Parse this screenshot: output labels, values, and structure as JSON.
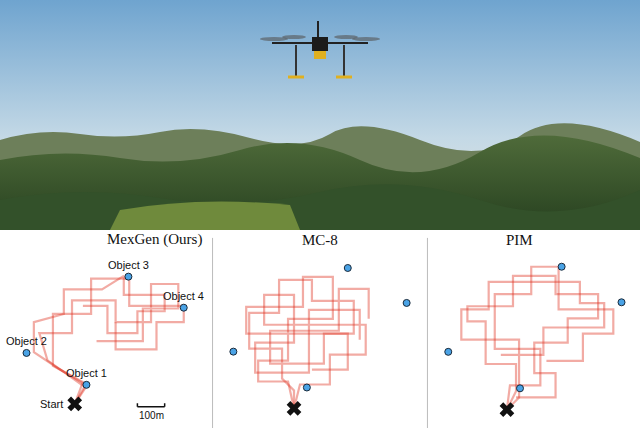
{
  "chart_data": [
    {
      "type": "trajectory",
      "title": "MexGen (Ours)",
      "color": "#e0301e",
      "tick_labels": false,
      "start": {
        "x": 0,
        "y": 0,
        "label": "Start"
      },
      "scale_bar": {
        "length": 100,
        "label": "100m"
      },
      "objects": [
        {
          "x": 43,
          "y": 70,
          "label": "Object 1"
        },
        {
          "x": -177,
          "y": 187,
          "label": "Object 2"
        },
        {
          "x": 197,
          "y": 467,
          "label": "Object 3"
        },
        {
          "x": 400,
          "y": 353,
          "label": "Object 4"
        }
      ],
      "series": [
        {
          "values": [
            [
              0,
              0
            ],
            [
              40,
              70
            ],
            [
              -60,
              130
            ],
            [
              -150,
              190
            ],
            [
              -150,
              300
            ],
            [
              -40,
              330
            ],
            [
              -40,
              420
            ],
            [
              100,
              420
            ],
            [
              180,
              470
            ],
            [
              180,
              400
            ],
            [
              330,
              400
            ],
            [
              330,
              340
            ],
            [
              230,
              340
            ],
            [
              230,
              260
            ],
            [
              120,
              260
            ],
            [
              120,
              360
            ],
            [
              30,
              360
            ]
          ]
        },
        {
          "values": [
            [
              0,
              0
            ],
            [
              40,
              60
            ],
            [
              -100,
              160
            ],
            [
              -130,
              260
            ],
            [
              -10,
              260
            ],
            [
              -10,
              380
            ],
            [
              150,
              380
            ],
            [
              150,
              300
            ],
            [
              280,
              300
            ],
            [
              280,
              440
            ],
            [
              380,
              440
            ],
            [
              380,
              350
            ],
            [
              250,
              350
            ],
            [
              250,
              230
            ],
            [
              80,
              230
            ]
          ]
        },
        {
          "values": [
            [
              0,
              0
            ],
            [
              30,
              80
            ],
            [
              -80,
              140
            ],
            [
              -80,
              330
            ],
            [
              60,
              330
            ],
            [
              60,
              460
            ],
            [
              200,
              460
            ],
            [
              200,
              360
            ],
            [
              400,
              360
            ],
            [
              400,
              300
            ],
            [
              300,
              300
            ],
            [
              300,
              200
            ],
            [
              150,
              200
            ],
            [
              150,
              300
            ]
          ]
        }
      ]
    },
    {
      "type": "trajectory",
      "title": "MC-8",
      "color": "#e0301e",
      "tick_labels": false,
      "start": {
        "x": 0,
        "y": 0
      },
      "objects": [
        {
          "x": 43,
          "y": 70
        },
        {
          "x": -203,
          "y": 190
        },
        {
          "x": 180,
          "y": 470
        },
        {
          "x": 377,
          "y": 353
        }
      ],
      "series": [
        {
          "values": [
            [
              0,
              0
            ],
            [
              0,
              60
            ],
            [
              -40,
              100
            ],
            [
              -40,
              200
            ],
            [
              -150,
              200
            ],
            [
              -150,
              320
            ],
            [
              -50,
              320
            ],
            [
              -50,
              430
            ],
            [
              60,
              430
            ],
            [
              60,
              360
            ],
            [
              200,
              360
            ],
            [
              200,
              250
            ],
            [
              100,
              250
            ],
            [
              100,
              150
            ],
            [
              -80,
              150
            ],
            [
              -80,
              260
            ],
            [
              150,
              260
            ],
            [
              150,
              400
            ],
            [
              250,
              400
            ],
            [
              250,
              300
            ]
          ]
        },
        {
          "values": [
            [
              0,
              0
            ],
            [
              20,
              80
            ],
            [
              120,
              80
            ],
            [
              120,
              180
            ],
            [
              240,
              180
            ],
            [
              240,
              280
            ],
            [
              -100,
              280
            ],
            [
              -100,
              380
            ],
            [
              0,
              380
            ],
            [
              0,
              220
            ],
            [
              -130,
              220
            ],
            [
              -130,
              120
            ],
            [
              50,
              120
            ],
            [
              50,
              330
            ],
            [
              220,
              330
            ],
            [
              220,
              230
            ]
          ]
        },
        {
          "values": [
            [
              0,
              0
            ],
            [
              -20,
              90
            ],
            [
              -120,
              90
            ],
            [
              -120,
              160
            ],
            [
              -20,
              160
            ],
            [
              -20,
              300
            ],
            [
              130,
              300
            ],
            [
              130,
              440
            ],
            [
              30,
              440
            ],
            [
              30,
              340
            ],
            [
              -160,
              340
            ],
            [
              -160,
              250
            ],
            [
              180,
              250
            ],
            [
              180,
              130
            ],
            [
              60,
              130
            ]
          ]
        }
      ]
    },
    {
      "type": "trajectory",
      "title": "PIM",
      "color": "#e0301e",
      "tick_labels": false,
      "start": {
        "x": 0,
        "y": 0
      },
      "objects": [
        {
          "x": 43,
          "y": 70
        },
        {
          "x": -193,
          "y": 190
        },
        {
          "x": 180,
          "y": 470
        },
        {
          "x": 377,
          "y": 353
        }
      ],
      "series": [
        {
          "values": [
            [
              0,
              0
            ],
            [
              30,
              60
            ],
            [
              30,
              150
            ],
            [
              -70,
              150
            ],
            [
              -70,
              290
            ],
            [
              -130,
              290
            ],
            [
              -130,
              340
            ],
            [
              20,
              340
            ],
            [
              20,
              440
            ],
            [
              160,
              440
            ],
            [
              160,
              380
            ],
            [
              300,
              380
            ],
            [
              300,
              300
            ],
            [
              200,
              300
            ],
            [
              200,
              220
            ],
            [
              90,
              220
            ],
            [
              90,
              120
            ],
            [
              160,
              120
            ],
            [
              160,
              40
            ],
            [
              30,
              40
            ]
          ]
        },
        {
          "values": [
            [
              0,
              0
            ],
            [
              10,
              80
            ],
            [
              110,
              80
            ],
            [
              110,
              200
            ],
            [
              -40,
              200
            ],
            [
              -40,
              380
            ],
            [
              80,
              380
            ],
            [
              80,
              470
            ],
            [
              170,
              470
            ],
            [
              170,
              330
            ],
            [
              350,
              330
            ],
            [
              350,
              250
            ],
            [
              250,
              250
            ],
            [
              250,
              160
            ],
            [
              130,
              160
            ]
          ]
        },
        {
          "values": [
            [
              0,
              0
            ],
            [
              40,
              40
            ],
            [
              40,
              230
            ],
            [
              -150,
              230
            ],
            [
              -150,
              330
            ],
            [
              -60,
              330
            ],
            [
              -60,
              420
            ],
            [
              240,
              420
            ],
            [
              240,
              350
            ],
            [
              320,
              350
            ],
            [
              320,
              270
            ],
            [
              120,
              270
            ],
            [
              120,
              180
            ],
            [
              -20,
              180
            ]
          ]
        }
      ]
    }
  ]
}
